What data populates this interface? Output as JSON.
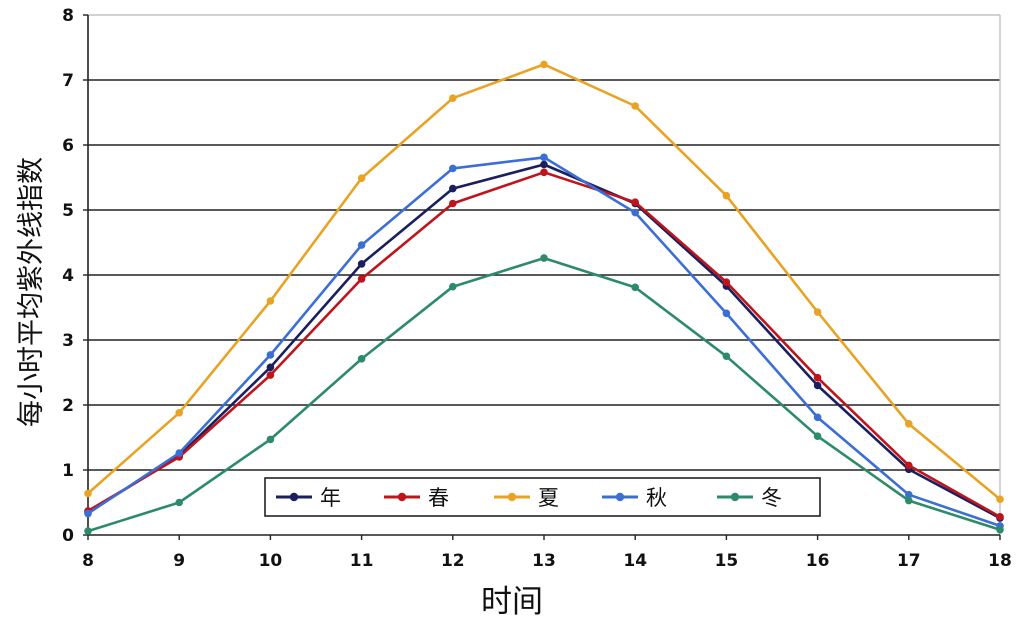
{
  "chart_data": {
    "type": "line",
    "title": "",
    "xlabel": "时间",
    "ylabel": "每小时平均紫外线指数",
    "x": [
      8,
      9,
      10,
      11,
      12,
      13,
      14,
      15,
      16,
      17,
      18
    ],
    "xlim": [
      8,
      18
    ],
    "ylim": [
      0,
      8
    ],
    "yticks": [
      0,
      1,
      2,
      3,
      4,
      5,
      6,
      7,
      8
    ],
    "grid": "horizontal",
    "legend_position": "bottom-center",
    "series": [
      {
        "name": "年",
        "color": "#1a1f5e",
        "values": [
          0.35,
          1.22,
          2.58,
          4.17,
          5.33,
          5.7,
          5.1,
          3.83,
          2.3,
          1.01,
          0.26
        ]
      },
      {
        "name": "春",
        "color": "#c0141c",
        "values": [
          0.37,
          1.2,
          2.46,
          3.94,
          5.1,
          5.58,
          5.12,
          3.89,
          2.42,
          1.07,
          0.28
        ]
      },
      {
        "name": "夏",
        "color": "#e8a325",
        "values": [
          0.64,
          1.88,
          3.6,
          5.49,
          6.72,
          7.24,
          6.6,
          5.22,
          3.43,
          1.71,
          0.55
        ]
      },
      {
        "name": "秋",
        "color": "#3b6fd4",
        "values": [
          0.33,
          1.26,
          2.77,
          4.46,
          5.64,
          5.81,
          4.96,
          3.41,
          1.81,
          0.62,
          0.14
        ]
      },
      {
        "name": "冬",
        "color": "#2e8b6a",
        "values": [
          0.06,
          0.5,
          1.47,
          2.71,
          3.82,
          4.26,
          3.81,
          2.75,
          1.52,
          0.53,
          0.08
        ]
      }
    ]
  }
}
